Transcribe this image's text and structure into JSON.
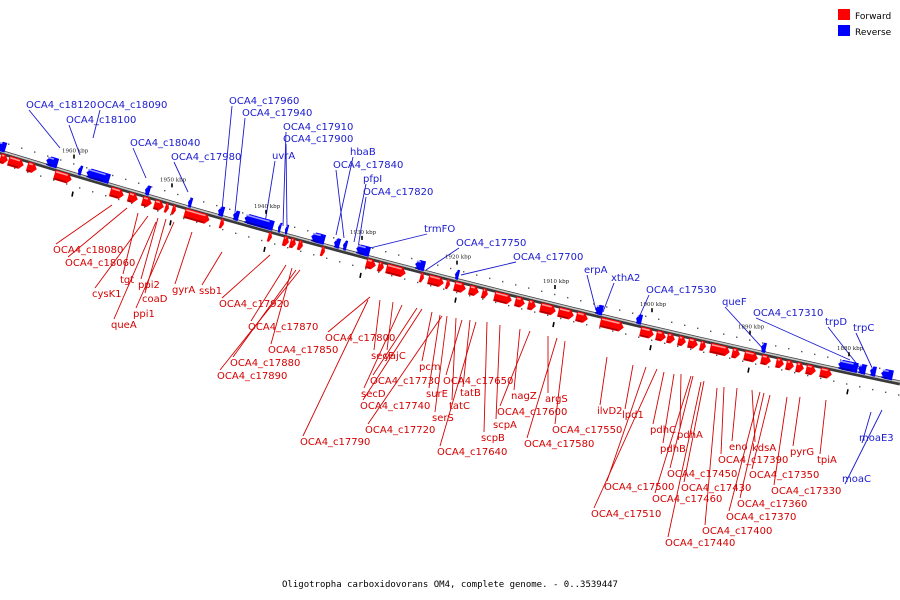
{
  "caption": "Oligotropha carboxidovorans OM4, complete genome. - 0..3539447",
  "legend": [
    {
      "label": "Forward",
      "color": "#ff0000"
    },
    {
      "label": "Reverse",
      "color": "#0000ff"
    }
  ],
  "colors": {
    "forward": "#ff0000",
    "reverse": "#0000ff",
    "forward_label": "#d40000",
    "reverse_label": "#1a1ad0",
    "axis": "#808080"
  },
  "scale_ticks": [
    "1960 kbp",
    "1950 kbp",
    "1940 kbp",
    "1930 kbp",
    "1920 kbp",
    "1910 kbp",
    "1900 kbp",
    "1890 kbp",
    "1880 kbp"
  ],
  "reverse_genes": [
    "OCA4_c18120",
    "OCA4_c18090",
    "OCA4_c18100",
    "OCA4_c18040",
    "OCA4_c17980",
    "OCA4_c17960",
    "OCA4_c17940",
    "OCA4_c17910",
    "OCA4_c17900",
    "uvrA",
    "hbaB",
    "OCA4_c17840",
    "pfpI",
    "OCA4_c17820",
    "trmFO",
    "OCA4_c17750",
    "OCA4_c17700",
    "erpA",
    "xthA2",
    "OCA4_c17530",
    "queF",
    "OCA4_c17310",
    "trpD",
    "trpC",
    "moaE3",
    "moaC"
  ],
  "forward_genes": [
    "OCA4_c18080",
    "OCA4_c18060",
    "tgt",
    "cysK1",
    "ppi2",
    "coaD",
    "ppi1",
    "queA",
    "gyrA",
    "ssb1",
    "OCA4_c17920",
    "OCA4_c17870",
    "OCA4_c17850",
    "OCA4_c17880",
    "OCA4_c17890",
    "OCA4_c17800",
    "secF",
    "yajC",
    "OCA4_c17790",
    "secD",
    "OCA4_c17730",
    "OCA4_c17740",
    "pcm",
    "surE",
    "serS",
    "OCA4_c17720",
    "tatC",
    "OCA4_c17650",
    "tatB",
    "scpB",
    "OCA4_c17640",
    "scpA",
    "nagZ",
    "OCA4_c17600",
    "argS",
    "OCA4_c17580",
    "OCA4_c17550",
    "ilvD2",
    "lpd1",
    "pdhC",
    "pdhA",
    "pdhB",
    "OCA4_c17500",
    "OCA4_c17510",
    "OCA4_c17450",
    "OCA4_c17460",
    "OCA4_c17430",
    "OCA4_c17440",
    "OCA4_c17400",
    "OCA4_c17390",
    "eno",
    "kdsA",
    "OCA4_c17370",
    "OCA4_c17360",
    "OCA4_c17350",
    "pyrG",
    "OCA4_c17330",
    "tpiA"
  ]
}
